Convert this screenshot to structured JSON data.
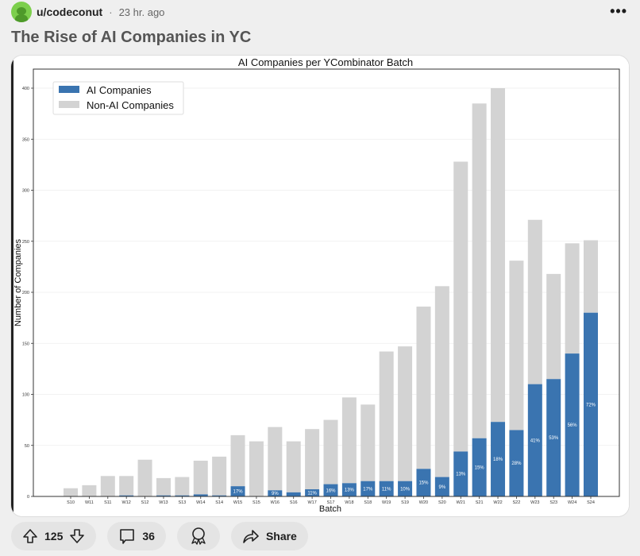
{
  "post": {
    "username": "u/codeconut",
    "separator": "·",
    "time": "23 hr. ago",
    "more_label": "•••",
    "title": "The Rise of AI Companies in YC"
  },
  "actions": {
    "score": "125",
    "comments": "36",
    "share_label": "Share"
  },
  "chart_data": {
    "type": "bar",
    "stacked": true,
    "title": "AI Companies per YCombinator Batch",
    "xlabel": "Batch",
    "ylabel": "Number of Companies",
    "ylim": [
      0,
      420
    ],
    "yticks": [
      0,
      50,
      100,
      150,
      200,
      250,
      300,
      350,
      400
    ],
    "grid": true,
    "legend_position": "top-left",
    "categories": [
      "S10",
      "W11",
      "S11",
      "W12",
      "S12",
      "W13",
      "S13",
      "W14",
      "S14",
      "W15",
      "S15",
      "W16",
      "S16",
      "W17",
      "S17",
      "W18",
      "S18",
      "W19",
      "S19",
      "W20",
      "S20",
      "W21",
      "S21",
      "W22",
      "S22",
      "W23",
      "S23",
      "W24",
      "S24"
    ],
    "series": [
      {
        "name": "AI Companies",
        "color": "#3a74b0",
        "values": [
          0,
          0,
          0,
          1,
          0,
          1,
          1,
          2,
          1,
          10,
          0,
          6,
          4,
          7,
          12,
          13,
          15,
          15,
          15,
          27,
          19,
          44,
          57,
          73,
          65,
          110,
          115,
          140,
          180
        ]
      },
      {
        "name": "Non-AI Companies",
        "color": "#d3d3d3",
        "values": [
          8,
          11,
          20,
          19,
          36,
          17,
          18,
          33,
          38,
          50,
          54,
          62,
          50,
          59,
          63,
          84,
          75,
          127,
          132,
          159,
          187,
          284,
          328,
          327,
          166,
          161,
          103,
          108,
          71
        ]
      }
    ],
    "percent_labels": [
      "",
      "",
      "",
      "",
      "",
      "",
      "",
      "",
      "",
      "17%",
      "",
      "9%",
      "",
      "11%",
      "16%",
      "13%",
      "17%",
      "11%",
      "10%",
      "15%",
      "9%",
      "13%",
      "15%",
      "18%",
      "28%",
      "41%",
      "53%",
      "56%",
      "72%"
    ]
  }
}
